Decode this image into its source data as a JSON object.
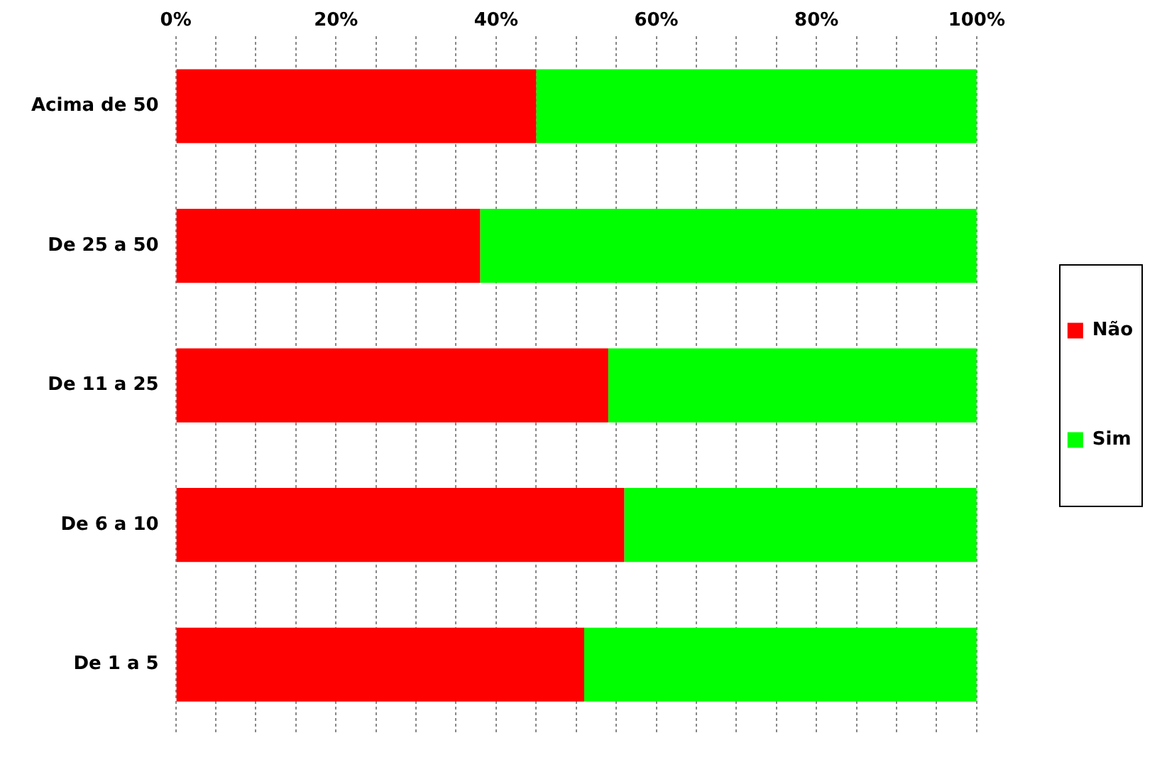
{
  "chart_data": {
    "type": "bar",
    "orientation": "horizontal",
    "stacked": true,
    "categories": [
      "Acima de 50",
      "De 25 a 50",
      "De 11 a 25",
      "De 6 a 10",
      "De 1 a 5"
    ],
    "series": [
      {
        "name": "Não",
        "color": "#ff0000",
        "values": [
          45,
          38,
          54,
          56,
          51
        ]
      },
      {
        "name": "Sim",
        "color": "#00ff00",
        "values": [
          55,
          62,
          46,
          44,
          49
        ]
      }
    ],
    "xlim": [
      0,
      100
    ],
    "xticks": [
      {
        "value": 0,
        "label": "0%"
      },
      {
        "value": 5,
        "label": null
      },
      {
        "value": 10,
        "label": null
      },
      {
        "value": 15,
        "label": null
      },
      {
        "value": 20,
        "label": "20%"
      },
      {
        "value": 25,
        "label": null
      },
      {
        "value": 30,
        "label": null
      },
      {
        "value": 35,
        "label": null
      },
      {
        "value": 40,
        "label": "40%"
      },
      {
        "value": 45,
        "label": null
      },
      {
        "value": 50,
        "label": null
      },
      {
        "value": 55,
        "label": null
      },
      {
        "value": 60,
        "label": "60%"
      },
      {
        "value": 65,
        "label": null
      },
      {
        "value": 70,
        "label": null
      },
      {
        "value": 75,
        "label": null
      },
      {
        "value": 80,
        "label": "80%"
      },
      {
        "value": 85,
        "label": null
      },
      {
        "value": 90,
        "label": null
      },
      {
        "value": 95,
        "label": null
      },
      {
        "value": 100,
        "label": "100%"
      }
    ],
    "grid": "x",
    "legend": "right"
  }
}
